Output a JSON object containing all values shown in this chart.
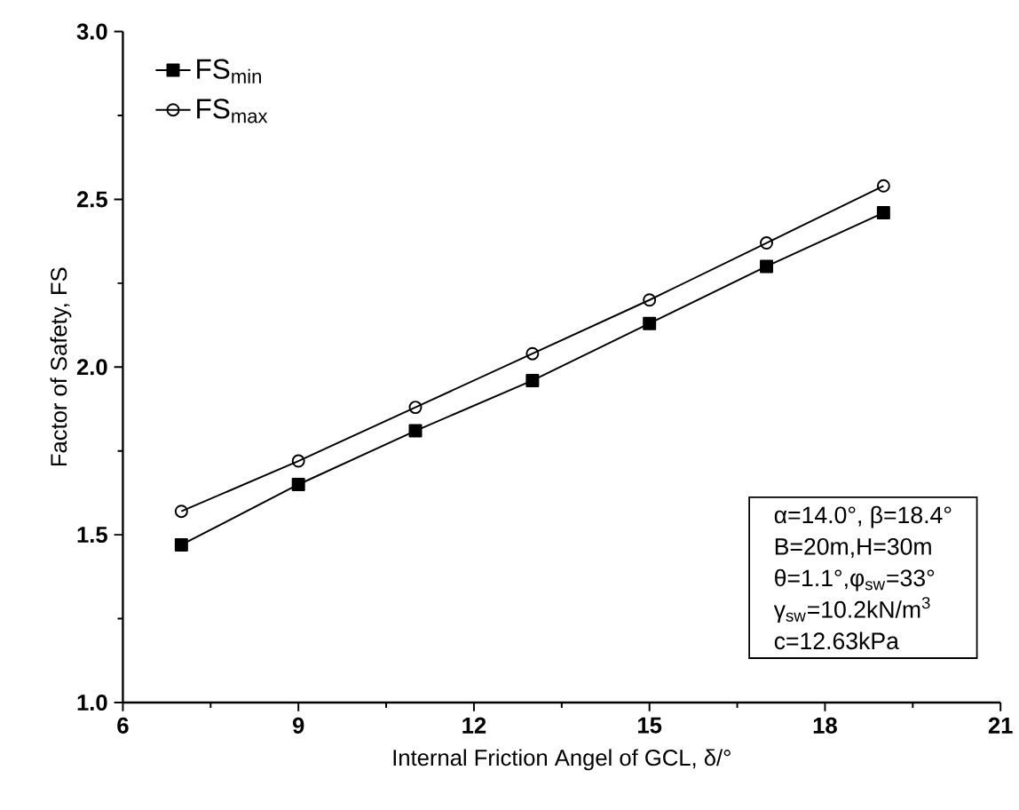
{
  "chart_data": {
    "type": "line",
    "xlabel": "Internal Friction Angel of GCL, δ/°",
    "ylabel": "Factor of Safety, FS",
    "x": [
      7,
      9,
      11,
      13,
      15,
      17,
      19
    ],
    "series": [
      {
        "name": "FS$_{min}$",
        "color": "#000000",
        "marker": "square",
        "values": [
          1.47,
          1.65,
          1.81,
          1.96,
          2.13,
          2.3,
          2.46
        ]
      },
      {
        "name": "FS$_{max}$",
        "color": "#000000",
        "marker": "circle",
        "values": [
          1.57,
          1.72,
          1.88,
          2.04,
          2.2,
          2.37,
          2.54
        ]
      }
    ],
    "xlim": [
      6,
      21
    ],
    "xticks": [
      6,
      9,
      12,
      15,
      18,
      21
    ],
    "ylim": [
      1.0,
      3.0
    ],
    "yticks": [
      {
        "value": 1.0,
        "label": "1.0"
      },
      {
        "value": 1.5,
        "label": "1.5"
      },
      {
        "value": 2.0,
        "label": "2.0"
      },
      {
        "value": 2.5,
        "label": "2.5"
      },
      {
        "value": 3.0,
        "label": "3.0"
      }
    ],
    "annotations": [
      "α=14.0°, β=18.4°",
      "B=20m,H=30m",
      "θ=1.1°,φ$_{sw}$=33°",
      "γ$_{sw}$=10.2kN/m$^{3}$",
      "c=12.63kPa"
    ],
    "legend": "top left",
    "line_style": "solid",
    "grid": false
  }
}
